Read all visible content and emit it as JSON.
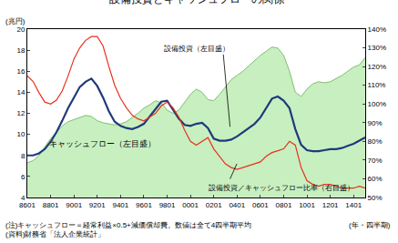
{
  "chart_data": {
    "type": "line",
    "title": "設備投資とキャッシュフローの関係",
    "y_unit": "(兆円)",
    "x_label": "(年・四半期)",
    "notes": [
      "(注)キャッシュフロー＝経常利益×0.5+減価償却費。数値は全て4四半期平均",
      "(資料)財務省「法人企業統計」"
    ],
    "grid": false,
    "categories": [
      "8601",
      null,
      null,
      null,
      "8801",
      null,
      null,
      null,
      "9001",
      null,
      null,
      null,
      "9201",
      null,
      null,
      null,
      "9401",
      null,
      null,
      null,
      "9601",
      null,
      null,
      null,
      "9801",
      null,
      null,
      null,
      "0001",
      null,
      null,
      null,
      "0201",
      null,
      null,
      null,
      "0401",
      null,
      null,
      null,
      "0601",
      null,
      null,
      null,
      "0801",
      null,
      null,
      null,
      "1001",
      null,
      null,
      null,
      "1201",
      null,
      null,
      null,
      "1401",
      null,
      null
    ],
    "ylim": [
      4,
      20
    ],
    "yticks": [
      4,
      6,
      8,
      10,
      12,
      14,
      16,
      18,
      20
    ],
    "y2lim": [
      50,
      140
    ],
    "y2ticks": [
      {
        "value": 50,
        "label": "50%"
      },
      {
        "value": 60,
        "label": "60%"
      },
      {
        "value": 70,
        "label": "70%"
      },
      {
        "value": 80,
        "label": "80%"
      },
      {
        "value": 90,
        "label": "90%"
      },
      {
        "value": 100,
        "label": "100%"
      },
      {
        "value": 110,
        "label": "110%"
      },
      {
        "value": 120,
        "label": "120%"
      },
      {
        "value": 130,
        "label": "130%"
      },
      {
        "value": 140,
        "label": "140%"
      }
    ],
    "series": [
      {
        "name": "キャッシュフロー（左目盛）",
        "type": "area",
        "color": "#c8efc0",
        "values": [
          7.3,
          7.5,
          8.0,
          8.8,
          9.6,
          10.2,
          10.8,
          11.2,
          11.4,
          11.6,
          11.8,
          11.7,
          11.3,
          11.1,
          11.0,
          10.9,
          11.0,
          11.2,
          11.6,
          12.0,
          12.5,
          12.8,
          13.2,
          13.0,
          12.3,
          12.0,
          12.3,
          13.0,
          13.8,
          14.3,
          14.0,
          13.3,
          13.2,
          13.8,
          14.5,
          15.2,
          15.6,
          16.0,
          16.5,
          17.0,
          17.5,
          17.9,
          18.3,
          18.2,
          17.5,
          16.0,
          14.0,
          13.6,
          14.3,
          14.8,
          15.0,
          14.9,
          15.0,
          15.3,
          15.6,
          16.0,
          16.4,
          16.6,
          17.3
        ]
      },
      {
        "name": "設備投資（左目盛）",
        "type": "line",
        "color": "#1f3a7a",
        "values": [
          8.0,
          8.0,
          8.2,
          8.6,
          9.3,
          10.2,
          11.3,
          12.5,
          13.5,
          14.5,
          15.0,
          15.3,
          14.6,
          13.5,
          12.2,
          11.2,
          10.8,
          10.6,
          10.5,
          10.7,
          11.0,
          11.7,
          12.5,
          13.1,
          13.2,
          12.3,
          11.5,
          10.9,
          10.8,
          11.0,
          11.1,
          10.6,
          9.6,
          9.4,
          9.4,
          9.5,
          9.8,
          10.2,
          10.6,
          11.0,
          11.6,
          12.5,
          13.4,
          13.6,
          13.2,
          12.5,
          10.5,
          9.0,
          8.5,
          8.4,
          8.4,
          8.5,
          8.6,
          8.6,
          8.7,
          8.9,
          9.1,
          9.4,
          9.7
        ]
      },
      {
        "name": "設備投資／キャッシュフロー比率（右目盛）",
        "type": "line",
        "axis": "y2",
        "color": "#e8321e",
        "values": [
          115,
          112,
          106,
          101,
          100,
          102,
          107,
          115,
          124,
          130,
          134,
          136,
          136,
          131,
          120,
          110,
          103,
          98,
          94,
          92,
          91,
          93,
          95,
          99,
          101,
          98,
          93,
          86,
          80,
          78,
          80,
          82,
          76,
          72,
          68,
          66,
          65,
          66,
          67,
          68,
          69,
          72,
          74,
          75,
          76,
          80,
          78,
          66,
          59,
          57,
          56,
          57,
          57,
          56,
          55,
          55,
          55,
          56,
          55
        ]
      }
    ]
  }
}
